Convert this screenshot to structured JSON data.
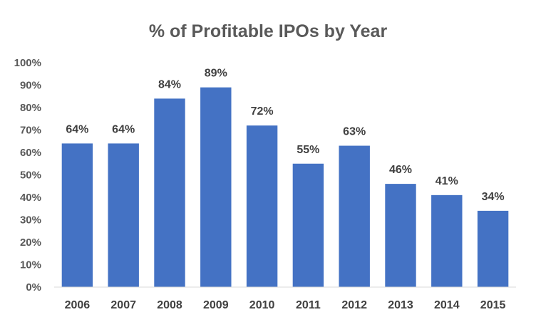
{
  "chart_data": {
    "type": "bar",
    "title": "% of Profitable IPOs by Year",
    "categories": [
      "2006",
      "2007",
      "2008",
      "2009",
      "2010",
      "2011",
      "2012",
      "2013",
      "2014",
      "2015"
    ],
    "values": [
      64,
      64,
      84,
      89,
      72,
      55,
      63,
      46,
      41,
      34
    ],
    "data_labels": [
      "64%",
      "64%",
      "84%",
      "89%",
      "72%",
      "55%",
      "63%",
      "46%",
      "41%",
      "34%"
    ],
    "y_ticks": [
      "0%",
      "10%",
      "20%",
      "30%",
      "40%",
      "50%",
      "60%",
      "70%",
      "80%",
      "90%",
      "100%"
    ],
    "ylim": [
      0,
      100
    ],
    "grid": false,
    "legend": "none",
    "bar_color": "#4472C4"
  }
}
